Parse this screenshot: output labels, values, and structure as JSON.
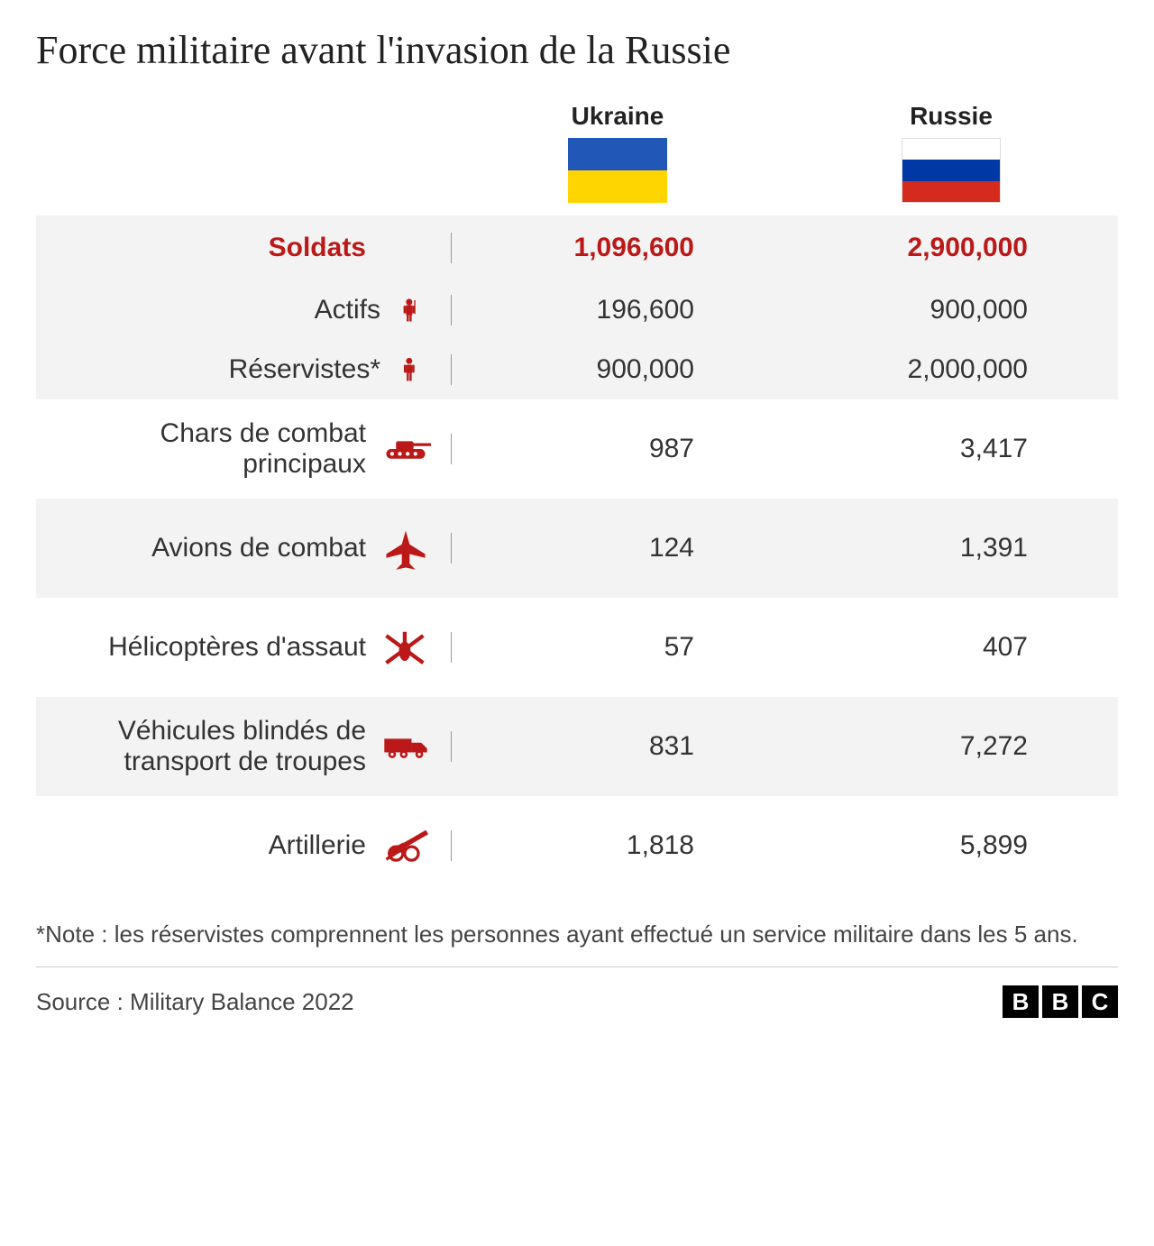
{
  "title": "Force militaire avant l'invasion de la Russie",
  "columns": [
    {
      "label": "Ukraine",
      "flag_top": "#2158b7",
      "flag_bottom": "#ffd500",
      "flag_border": "#cccccc"
    },
    {
      "label": "Russie",
      "flag_stripes": [
        "#ffffff",
        "#0039a6",
        "#d52b1e"
      ],
      "flag_border": "#cccccc"
    }
  ],
  "accent_color": "#bb1919",
  "text_color": "#333333",
  "zebra_color": "#f3f3f3",
  "divider_color": "#999999",
  "rows": [
    {
      "label": "Soldats",
      "icon": null,
      "ukraine": "1,096,600",
      "russie": "2,900,000",
      "highlight": true,
      "zebra": true,
      "group_top": true
    },
    {
      "label": "Actifs",
      "icon": "soldier",
      "ukraine": "196,600",
      "russie": "900,000",
      "highlight": false,
      "zebra": true,
      "sub": true
    },
    {
      "label": "Réservistes*",
      "icon": "person",
      "ukraine": "900,000",
      "russie": "2,000,000",
      "highlight": false,
      "zebra": true,
      "sub": true
    },
    {
      "label": "Chars de combat principaux",
      "icon": "tank",
      "ukraine": "987",
      "russie": "3,417",
      "highlight": false,
      "zebra": false
    },
    {
      "label": "Avions de combat",
      "icon": "jet",
      "ukraine": "124",
      "russie": "1,391",
      "highlight": false,
      "zebra": true
    },
    {
      "label": "Hélicoptères d'assaut",
      "icon": "heli",
      "ukraine": "57",
      "russie": "407",
      "highlight": false,
      "zebra": false
    },
    {
      "label": "Véhicules blindés de transport de troupes",
      "icon": "truck",
      "ukraine": "831",
      "russie": "7,272",
      "highlight": false,
      "zebra": true
    },
    {
      "label": "Artillerie",
      "icon": "artillery",
      "ukraine": "1,818",
      "russie": "5,899",
      "highlight": false,
      "zebra": false
    }
  ],
  "footnote": "*Note : les réservistes comprennent les personnes ayant effectué un service militaire dans les 5 ans.",
  "source": "Source : Military Balance 2022",
  "logo": {
    "letters": [
      "B",
      "B",
      "C"
    ],
    "bg": "#000000",
    "fg": "#ffffff"
  },
  "label_fontsize": 30,
  "title_fontsize": 44,
  "footnote_fontsize": 26
}
